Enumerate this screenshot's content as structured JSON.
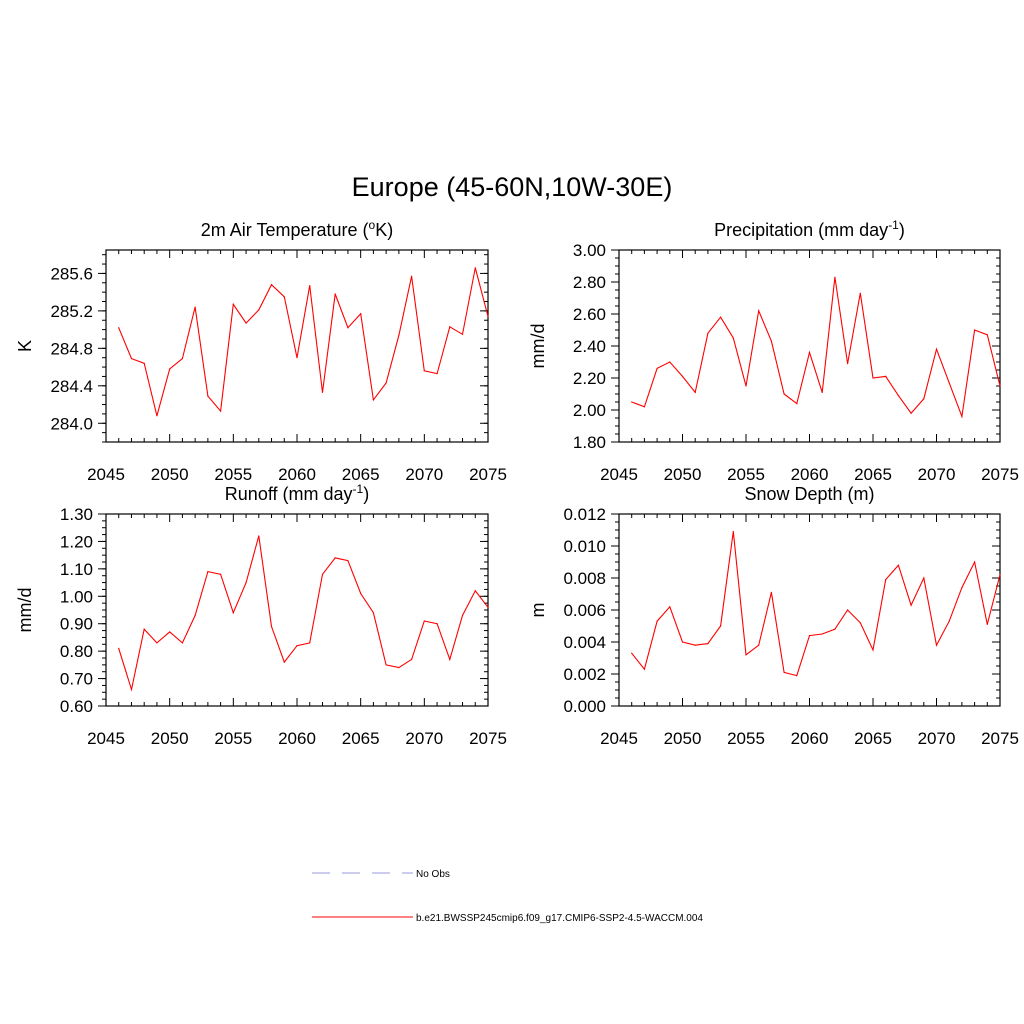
{
  "title": "Europe (45-60N,10W-30E)",
  "chart_data": [
    {
      "type": "line",
      "title": "2m Air Temperature (",
      "title_super": "o",
      "title_tail": "K)",
      "ylabel": "K",
      "xlim": [
        2045,
        2075
      ],
      "ylim": [
        283.8,
        285.85
      ],
      "xticks": [
        2045,
        2050,
        2055,
        2060,
        2065,
        2070,
        2075
      ],
      "yticks": [
        284.0,
        284.4,
        284.8,
        285.2,
        285.6
      ],
      "ytick_labels": [
        "284.0",
        "284.4",
        "284.8",
        "285.2",
        "285.6"
      ],
      "x": [
        2046,
        2047,
        2048,
        2049,
        2050,
        2051,
        2052,
        2053,
        2054,
        2055,
        2056,
        2057,
        2058,
        2059,
        2060,
        2061,
        2062,
        2063,
        2064,
        2065,
        2066,
        2067,
        2068,
        2069,
        2070,
        2071,
        2072,
        2073,
        2074,
        2075
      ],
      "series": [
        {
          "color": "#ff0000",
          "values": [
            285.02,
            284.69,
            284.64,
            284.08,
            284.58,
            284.69,
            285.24,
            284.29,
            284.13,
            285.27,
            285.07,
            285.21,
            285.48,
            285.35,
            284.7,
            285.47,
            284.33,
            285.38,
            285.02,
            285.17,
            284.25,
            284.43,
            284.94,
            285.57,
            284.56,
            284.53,
            285.03,
            284.95,
            285.66,
            285.14
          ]
        }
      ]
    },
    {
      "type": "line",
      "title": "Precipitation (mm day",
      "title_super": "-1",
      "title_tail": ")",
      "ylabel": "mm/d",
      "xlim": [
        2045,
        2075
      ],
      "ylim": [
        1.8,
        3.0
      ],
      "xticks": [
        2045,
        2050,
        2055,
        2060,
        2065,
        2070,
        2075
      ],
      "yticks": [
        1.8,
        2.0,
        2.2,
        2.4,
        2.6,
        2.8,
        3.0
      ],
      "ytick_labels": [
        "1.80",
        "2.00",
        "2.20",
        "2.40",
        "2.60",
        "2.80",
        "3.00"
      ],
      "x": [
        2046,
        2047,
        2048,
        2049,
        2050,
        2051,
        2052,
        2053,
        2054,
        2055,
        2056,
        2057,
        2058,
        2059,
        2060,
        2061,
        2062,
        2063,
        2064,
        2065,
        2066,
        2067,
        2068,
        2069,
        2070,
        2071,
        2072,
        2073,
        2074,
        2075
      ],
      "series": [
        {
          "color": "#ff0000",
          "values": [
            2.05,
            2.02,
            2.26,
            2.3,
            2.21,
            2.11,
            2.48,
            2.58,
            2.45,
            2.15,
            2.62,
            2.43,
            2.1,
            2.04,
            2.36,
            2.11,
            2.83,
            2.29,
            2.73,
            2.2,
            2.21,
            2.09,
            1.98,
            2.07,
            2.38,
            2.17,
            1.96,
            2.5,
            2.47,
            2.15
          ]
        }
      ]
    },
    {
      "type": "line",
      "title": "Runoff (mm day",
      "title_super": "-1",
      "title_tail": ")",
      "ylabel": "mm/d",
      "xlim": [
        2045,
        2075
      ],
      "ylim": [
        0.6,
        1.3
      ],
      "xticks": [
        2045,
        2050,
        2055,
        2060,
        2065,
        2070,
        2075
      ],
      "yticks": [
        0.6,
        0.7,
        0.8,
        0.9,
        1.0,
        1.1,
        1.2,
        1.3
      ],
      "ytick_labels": [
        "0.60",
        "0.70",
        "0.80",
        "0.90",
        "1.00",
        "1.10",
        "1.20",
        "1.30"
      ],
      "x": [
        2046,
        2047,
        2048,
        2049,
        2050,
        2051,
        2052,
        2053,
        2054,
        2055,
        2056,
        2057,
        2058,
        2059,
        2060,
        2061,
        2062,
        2063,
        2064,
        2065,
        2066,
        2067,
        2068,
        2069,
        2070,
        2071,
        2072,
        2073,
        2074,
        2075
      ],
      "series": [
        {
          "color": "#ff0000",
          "values": [
            0.81,
            0.66,
            0.88,
            0.83,
            0.87,
            0.83,
            0.93,
            1.09,
            1.08,
            0.94,
            1.05,
            1.22,
            0.89,
            0.76,
            0.82,
            0.83,
            1.08,
            1.14,
            1.13,
            1.01,
            0.94,
            0.75,
            0.74,
            0.77,
            0.91,
            0.9,
            0.77,
            0.93,
            1.02,
            0.96
          ]
        }
      ]
    },
    {
      "type": "line",
      "title": "Snow Depth (m)",
      "title_super": "",
      "title_tail": "",
      "ylabel": "m",
      "xlim": [
        2045,
        2075
      ],
      "ylim": [
        0.0,
        0.012
      ],
      "xticks": [
        2045,
        2050,
        2055,
        2060,
        2065,
        2070,
        2075
      ],
      "yticks": [
        0.0,
        0.002,
        0.004,
        0.006,
        0.008,
        0.01,
        0.012
      ],
      "ytick_labels": [
        "0.000",
        "0.002",
        "0.004",
        "0.006",
        "0.008",
        "0.010",
        "0.012"
      ],
      "x": [
        2046,
        2047,
        2048,
        2049,
        2050,
        2051,
        2052,
        2053,
        2054,
        2055,
        2056,
        2057,
        2058,
        2059,
        2060,
        2061,
        2062,
        2063,
        2064,
        2065,
        2066,
        2067,
        2068,
        2069,
        2070,
        2071,
        2072,
        2073,
        2074,
        2075
      ],
      "series": [
        {
          "color": "#ff0000",
          "values": [
            0.0033,
            0.0023,
            0.0053,
            0.0062,
            0.004,
            0.0038,
            0.0039,
            0.005,
            0.0109,
            0.0032,
            0.0038,
            0.0071,
            0.0021,
            0.0019,
            0.0044,
            0.0045,
            0.0048,
            0.006,
            0.0052,
            0.0035,
            0.0079,
            0.0088,
            0.0063,
            0.008,
            0.0038,
            0.0053,
            0.0074,
            0.009,
            0.0051,
            0.0082
          ]
        }
      ]
    }
  ],
  "legend": {
    "placement": "bottom-center",
    "items": [
      {
        "label": "No Obs",
        "color": "#9999dd",
        "style": "dashed"
      },
      {
        "label": "b.e21.BWSSP245cmip6.f09_g17.CMIP6-SSP2-4.5-WACCM.004",
        "color": "#ff0000",
        "style": "solid"
      }
    ]
  }
}
